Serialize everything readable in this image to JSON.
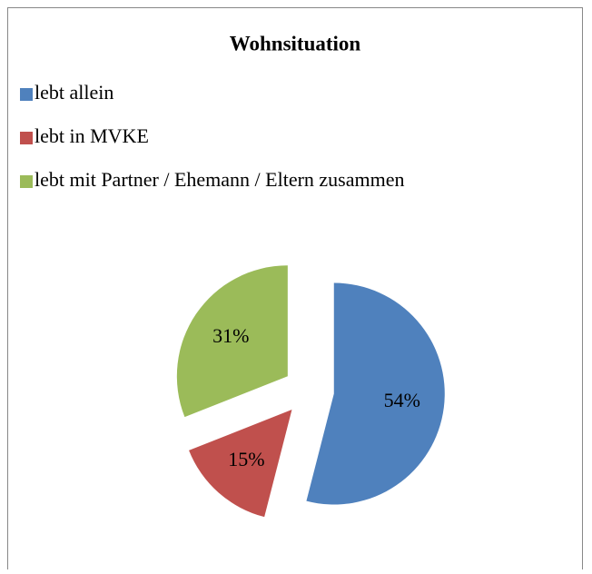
{
  "chart_data": {
    "type": "pie",
    "title": "Wohnsituation",
    "categories": [
      "lebt allein",
      "lebt in MVKE",
      "lebt mit Partner / Ehemann / Eltern zusammen"
    ],
    "values": [
      54,
      15,
      31
    ],
    "value_labels": [
      "54%",
      "15%",
      "31%"
    ],
    "colors": [
      "#4f81bd",
      "#c0504d",
      "#9bbb59"
    ],
    "legend": "top-left",
    "exploded": true
  }
}
